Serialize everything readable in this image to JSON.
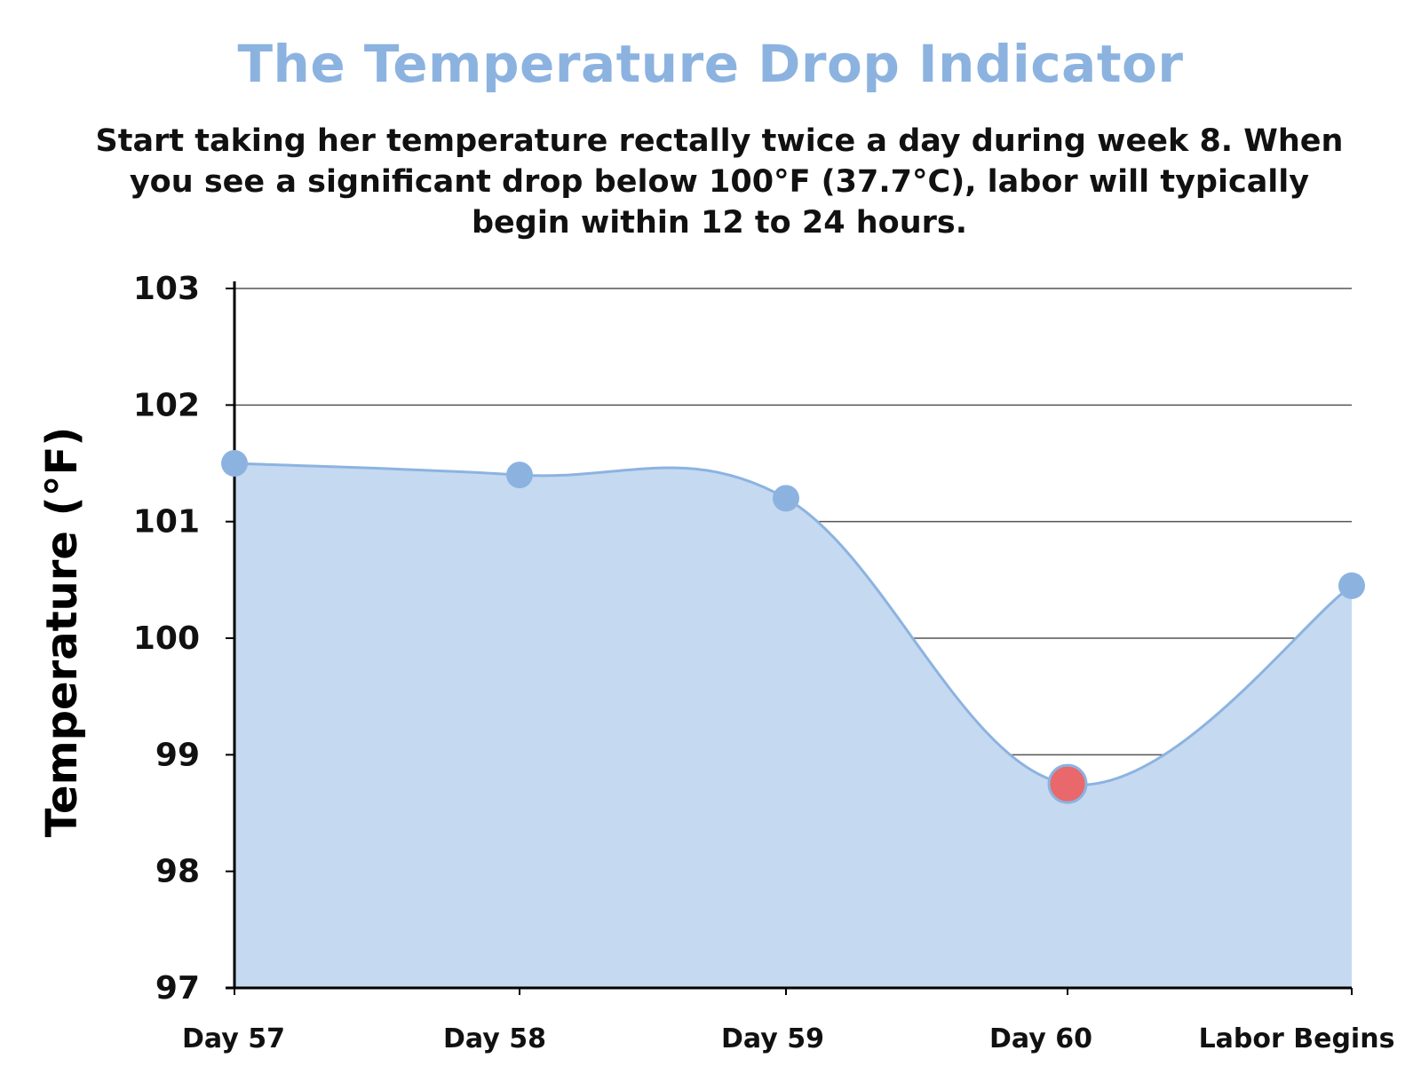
{
  "title": "The Temperature Drop Indicator",
  "subtitle": "Start taking her temperature rectally twice a day during week 8. When you see a significant drop below 100°F (37.7°C), labor will typically begin within 12 to 24 hours.",
  "colors": {
    "title": "#8cb3e0",
    "fill": "#c5d9f1",
    "line": "#8cb3e0",
    "point": "#8cb3e0",
    "highlight_point": "#e8686c",
    "grid": "#555555",
    "axis": "#000000"
  },
  "chart_data": {
    "type": "area",
    "title": "The Temperature Drop Indicator",
    "xlabel": "",
    "ylabel": "Temperature (°F)",
    "categories": [
      "Day 57",
      "Day 58",
      "Day 59",
      "Day 60",
      "Labor Begins"
    ],
    "series": [
      {
        "values": [
          101.5,
          101.4,
          101.2,
          98.75,
          100.45
        ],
        "highlight_index": 3
      }
    ],
    "ylim": [
      97,
      103
    ],
    "yticks": [
      "97",
      "98",
      "99",
      "100",
      "101",
      "102",
      "103"
    ],
    "grid": true,
    "smooth": true
  }
}
